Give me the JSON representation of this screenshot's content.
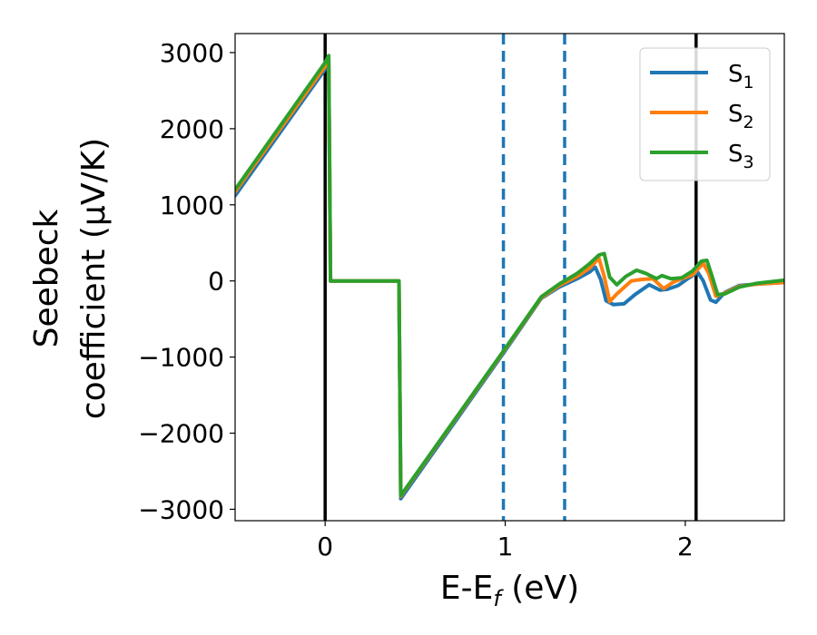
{
  "chart_data": {
    "type": "line",
    "title": "",
    "xlabel": "E-E",
    "xlabel_sub": "f",
    "xlabel_unit": " (eV)",
    "ylabel_line1": "Seebeck",
    "ylabel_line2": "coefficient  (μV/K)",
    "xlim": [
      -0.5,
      2.55
    ],
    "ylim": [
      -3150,
      3250
    ],
    "xticks": [
      0,
      1,
      2
    ],
    "xtick_labels": [
      "0",
      "1",
      "2"
    ],
    "yticks": [
      -3000,
      -2000,
      -1000,
      0,
      1000,
      2000,
      3000
    ],
    "ytick_labels": [
      "−3000",
      "−2000",
      "−1000",
      "0",
      "1000",
      "2000",
      "3000"
    ],
    "grid": false,
    "legend": {
      "position": "top-right",
      "entries": [
        {
          "prefix": "S",
          "sub": "1"
        },
        {
          "prefix": "S",
          "sub": "2"
        },
        {
          "prefix": "S",
          "sub": "3"
        }
      ]
    },
    "vlines": [
      {
        "x": 0.0,
        "style": "solid",
        "color": "#000000"
      },
      {
        "x": 2.06,
        "style": "solid",
        "color": "#000000"
      },
      {
        "x": 0.99,
        "style": "dashed",
        "color": "#1f77b4"
      },
      {
        "x": 1.33,
        "style": "dashed",
        "color": "#1f77b4"
      }
    ],
    "series": [
      {
        "name": "S1",
        "color": "#1f77b4",
        "x": [
          -0.5,
          0.0,
          0.02,
          0.03,
          0.41,
          0.42,
          0.99,
          1.2,
          1.3,
          1.4,
          1.47,
          1.5,
          1.53,
          1.56,
          1.6,
          1.66,
          1.72,
          1.8,
          1.86,
          1.9,
          1.96,
          2.02,
          2.07,
          2.1,
          2.14,
          2.17,
          2.22,
          2.3,
          2.4,
          2.55
        ],
        "y": [
          1120,
          2780,
          2840,
          0,
          0,
          -2860,
          -950,
          -230,
          -80,
          30,
          120,
          180,
          20,
          -260,
          -310,
          -300,
          -180,
          -50,
          -120,
          -110,
          -60,
          40,
          110,
          0,
          -250,
          -280,
          -150,
          -60,
          -40,
          -20
        ]
      },
      {
        "name": "S2",
        "color": "#ff7f0e",
        "x": [
          -0.5,
          0.0,
          0.02,
          0.03,
          0.41,
          0.42,
          0.99,
          1.2,
          1.3,
          1.4,
          1.47,
          1.52,
          1.55,
          1.58,
          1.62,
          1.7,
          1.76,
          1.82,
          1.88,
          1.93,
          1.98,
          2.04,
          2.1,
          2.13,
          2.17,
          2.22,
          2.3,
          2.4,
          2.55
        ],
        "y": [
          1170,
          2820,
          2900,
          0,
          0,
          -2830,
          -930,
          -220,
          -60,
          60,
          170,
          300,
          60,
          -270,
          -170,
          0,
          20,
          30,
          -100,
          -20,
          30,
          80,
          230,
          100,
          -200,
          -160,
          -70,
          -40,
          -20
        ]
      },
      {
        "name": "S3",
        "color": "#2ca02c",
        "x": [
          -0.5,
          0.0,
          0.02,
          0.03,
          0.41,
          0.42,
          0.99,
          1.2,
          1.3,
          1.4,
          1.47,
          1.52,
          1.55,
          1.58,
          1.62,
          1.67,
          1.73,
          1.78,
          1.84,
          1.87,
          1.92,
          1.98,
          2.04,
          2.09,
          2.12,
          2.15,
          2.18,
          2.22,
          2.3,
          2.4,
          2.55
        ],
        "y": [
          1200,
          2870,
          2960,
          0,
          0,
          -2820,
          -920,
          -210,
          -40,
          100,
          230,
          340,
          360,
          50,
          -50,
          60,
          140,
          100,
          30,
          70,
          30,
          40,
          130,
          260,
          270,
          50,
          -180,
          -170,
          -80,
          -30,
          10
        ]
      }
    ]
  }
}
